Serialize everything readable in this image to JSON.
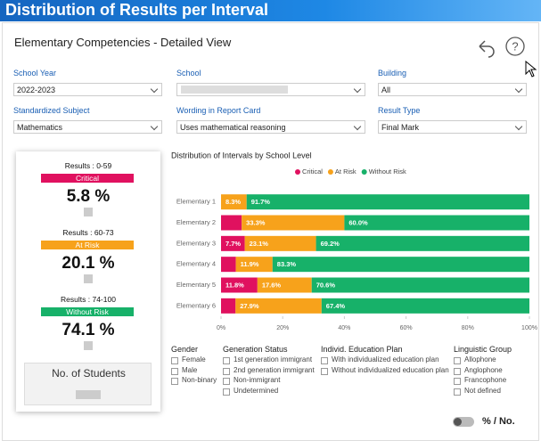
{
  "header": {
    "title": "Distribution of Results per Interval"
  },
  "panel": {
    "title": "Elementary Competencies - Detailed View"
  },
  "filters": [
    {
      "label": "School Year",
      "value": "2022-2023"
    },
    {
      "label": "School"
    },
    {
      "label": "Building",
      "value": "All"
    },
    {
      "label": "Standardized Subject",
      "value": "Mathematics"
    },
    {
      "label": "Wording in Report Card",
      "value": "Uses mathematical reasoning"
    },
    {
      "label": "Result Type",
      "value": "Final Mark"
    }
  ],
  "summary": [
    {
      "range": "Results : 0-59",
      "level": "Critical",
      "color": "#e0115f",
      "percent": "5.8 %"
    },
    {
      "range": "Results : 60-73",
      "level": "At Risk",
      "color": "#f7a21b",
      "percent": "20.1 %"
    },
    {
      "range": "Results : 74-100",
      "level": "Without Risk",
      "color": "#17b169",
      "percent": "74.1 %"
    }
  ],
  "students": {
    "label": "No. of Students"
  },
  "chart_data": {
    "type": "stacked-bar-horizontal",
    "title": "Distribution of Intervals by School Level",
    "categories": [
      "Elementary 1",
      "Elementary 2",
      "Elementary 3",
      "Elementary 4",
      "Elementary 5",
      "Elementary 6"
    ],
    "series": [
      {
        "name": "Critical",
        "color": "#e0115f",
        "values": [
          0,
          6.7,
          7.7,
          4.8,
          11.8,
          4.7
        ],
        "value_labels": [
          null,
          null,
          "7.7%",
          null,
          "11.8%",
          null
        ]
      },
      {
        "name": "At Risk",
        "color": "#f7a21b",
        "values": [
          8.3,
          33.3,
          23.1,
          11.9,
          17.6,
          27.9
        ],
        "value_labels": [
          "8.3%",
          "33.3%",
          "23.1%",
          "11.9%",
          "17.6%",
          "27.9%"
        ]
      },
      {
        "name": "Without Risk",
        "color": "#17b169",
        "values": [
          91.7,
          60.0,
          69.2,
          83.3,
          70.6,
          67.4
        ],
        "value_labels": [
          "91.7%",
          "60.0%",
          "69.2%",
          "83.3%",
          "70.6%",
          "67.4%"
        ]
      }
    ],
    "xlim": [
      0,
      100
    ],
    "xticks": [
      {
        "value": 0,
        "label": "0%"
      },
      {
        "value": 20,
        "label": "20%"
      },
      {
        "value": 40,
        "label": "40%"
      },
      {
        "value": 60,
        "label": "60%"
      },
      {
        "value": 80,
        "label": "80%"
      },
      {
        "value": 100,
        "label": "100%"
      }
    ],
    "legend": "top"
  },
  "checkbox_groups": [
    {
      "title": "Gender",
      "options": [
        "Female",
        "Male",
        "Non-binary"
      ]
    },
    {
      "title": "Generation Status",
      "options": [
        "1st generation immigrant",
        "2nd generation immigrant",
        "Non-immigrant",
        "Undetermined"
      ]
    },
    {
      "title": "Individ. Education Plan",
      "options": [
        "With individualized education plan",
        "Without individualized education plan"
      ]
    },
    {
      "title": "Linguistic Group",
      "options": [
        "Allophone",
        "Anglophone",
        "Francophone",
        "Not defined"
      ]
    }
  ],
  "toggle": {
    "label": "% / No."
  }
}
